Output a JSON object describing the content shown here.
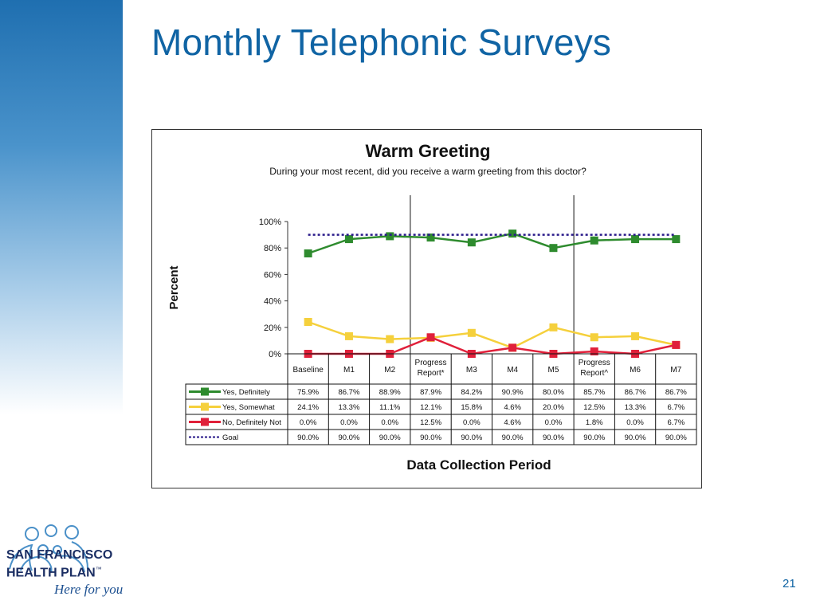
{
  "slide": {
    "title": "Monthly Telephonic Surveys",
    "page_number": "21"
  },
  "logo": {
    "line1": "SAN FRANCISCO",
    "line2": "HEALTH PLAN",
    "tm": "™",
    "tagline": "Here for you"
  },
  "colors": {
    "title_blue": "#1064a4",
    "yes_definitely": "#2e8b2e",
    "yes_somewhat": "#f5d03c",
    "no_definitely_not": "#e0203a",
    "goal": "#2a1a8a"
  },
  "chart_data": {
    "type": "line",
    "title": "Warm Greeting",
    "subtitle": "During your most recent, did you receive a warm greeting from this doctor?",
    "xlabel": "Data Collection Period",
    "ylabel": "Percent",
    "ylim": [
      0,
      100
    ],
    "yticks": [
      "0%",
      "20%",
      "40%",
      "60%",
      "80%",
      "100%"
    ],
    "categories": [
      [
        "Baseline"
      ],
      [
        "M1"
      ],
      [
        "M2"
      ],
      [
        "Progress",
        "Report*"
      ],
      [
        "M3"
      ],
      [
        "M4"
      ],
      [
        "M5"
      ],
      [
        "Progress",
        "Report^"
      ],
      [
        "M6"
      ],
      [
        "M7"
      ]
    ],
    "dividers_after": [
      2,
      6
    ],
    "series": [
      {
        "name": "Yes, Definitely",
        "color": "#2e8b2e",
        "style": "solid",
        "marker": true,
        "values": [
          75.9,
          86.7,
          88.9,
          87.9,
          84.2,
          90.9,
          80.0,
          85.7,
          86.7,
          86.7
        ],
        "labels": [
          "75.9%",
          "86.7%",
          "88.9%",
          "87.9%",
          "84.2%",
          "90.9%",
          "80.0%",
          "85.7%",
          "86.7%",
          "86.7%"
        ]
      },
      {
        "name": "Yes, Somewhat",
        "color": "#f5d03c",
        "style": "solid",
        "marker": true,
        "values": [
          24.1,
          13.3,
          11.1,
          12.1,
          15.8,
          4.6,
          20.0,
          12.5,
          13.3,
          6.7
        ],
        "labels": [
          "24.1%",
          "13.3%",
          "11.1%",
          "12.1%",
          "15.8%",
          "4.6%",
          "20.0%",
          "12.5%",
          "13.3%",
          "6.7%"
        ]
      },
      {
        "name": "No, Definitely Not",
        "color": "#e0203a",
        "style": "solid",
        "marker": true,
        "values": [
          0.0,
          0.0,
          0.0,
          12.5,
          0.0,
          4.6,
          0.0,
          1.8,
          0.0,
          6.7
        ],
        "labels": [
          "0.0%",
          "0.0%",
          "0.0%",
          "12.5%",
          "0.0%",
          "4.6%",
          "0.0%",
          "1.8%",
          "0.0%",
          "6.7%"
        ]
      },
      {
        "name": "Goal",
        "color": "#2a1a8a",
        "style": "dotted",
        "marker": false,
        "values": [
          90,
          90,
          90,
          90,
          90,
          90,
          90,
          90,
          90,
          90
        ],
        "labels": [
          "90.0%",
          "90.0%",
          "90.0%",
          "90.0%",
          "90.0%",
          "90.0%",
          "90.0%",
          "90.0%",
          "90.0%",
          "90.0%"
        ]
      }
    ]
  }
}
